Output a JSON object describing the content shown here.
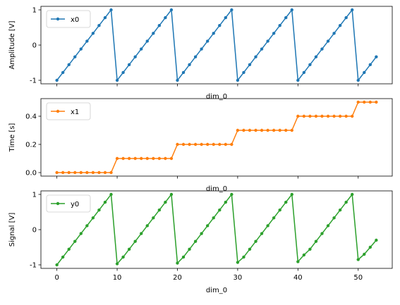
{
  "chart_data": [
    {
      "type": "line",
      "ylabel": "Amplitude [V]",
      "xlabel": "dim_0",
      "xlim": [
        -2.65,
        55.65
      ],
      "ylim": [
        -1.1,
        1.1
      ],
      "yticks": [
        -1,
        0,
        1
      ],
      "xticks": [
        0,
        10,
        20,
        30,
        40,
        50
      ],
      "show_xtick_labels": false,
      "legend_location": "upper left",
      "series": [
        {
          "name": "x0",
          "color": "#1f77b4",
          "x": [
            0,
            1,
            2,
            3,
            4,
            5,
            6,
            7,
            8,
            9,
            10,
            11,
            12,
            13,
            14,
            15,
            16,
            17,
            18,
            19,
            20,
            21,
            22,
            23,
            24,
            25,
            26,
            27,
            28,
            29,
            30,
            31,
            32,
            33,
            34,
            35,
            36,
            37,
            38,
            39,
            40,
            41,
            42,
            43,
            44,
            45,
            46,
            47,
            48,
            49,
            50,
            51,
            52,
            53
          ],
          "values": [
            -1,
            -0.778,
            -0.556,
            -0.333,
            -0.111,
            0.111,
            0.333,
            0.556,
            0.778,
            1,
            -1,
            -0.778,
            -0.556,
            -0.333,
            -0.111,
            0.111,
            0.333,
            0.556,
            0.778,
            1,
            -1,
            -0.778,
            -0.556,
            -0.333,
            -0.111,
            0.111,
            0.333,
            0.556,
            0.778,
            1,
            -1,
            -0.778,
            -0.556,
            -0.333,
            -0.111,
            0.111,
            0.333,
            0.556,
            0.778,
            1,
            -1,
            -0.778,
            -0.556,
            -0.333,
            -0.111,
            0.111,
            0.333,
            0.556,
            0.778,
            1,
            -1,
            -0.778,
            -0.556,
            -0.333
          ]
        }
      ]
    },
    {
      "type": "line",
      "ylabel": "Time [s]",
      "xlabel": "dim_0",
      "xlim": [
        -2.65,
        55.65
      ],
      "ylim": [
        -0.025,
        0.525
      ],
      "yticks": [
        0.0,
        0.2,
        0.4
      ],
      "ytick_labels": [
        "0.0",
        "0.2",
        "0.4"
      ],
      "xticks": [
        0,
        10,
        20,
        30,
        40,
        50
      ],
      "show_xtick_labels": false,
      "legend_location": "upper left",
      "series": [
        {
          "name": "x1",
          "color": "#ff7f0e",
          "x": [
            0,
            1,
            2,
            3,
            4,
            5,
            6,
            7,
            8,
            9,
            10,
            11,
            12,
            13,
            14,
            15,
            16,
            17,
            18,
            19,
            20,
            21,
            22,
            23,
            24,
            25,
            26,
            27,
            28,
            29,
            30,
            31,
            32,
            33,
            34,
            35,
            36,
            37,
            38,
            39,
            40,
            41,
            42,
            43,
            44,
            45,
            46,
            47,
            48,
            49,
            50,
            51,
            52,
            53
          ],
          "values": [
            0,
            0,
            0,
            0,
            0,
            0,
            0,
            0,
            0,
            0,
            0.1,
            0.1,
            0.1,
            0.1,
            0.1,
            0.1,
            0.1,
            0.1,
            0.1,
            0.1,
            0.2,
            0.2,
            0.2,
            0.2,
            0.2,
            0.2,
            0.2,
            0.2,
            0.2,
            0.2,
            0.3,
            0.3,
            0.3,
            0.3,
            0.3,
            0.3,
            0.3,
            0.3,
            0.3,
            0.3,
            0.4,
            0.4,
            0.4,
            0.4,
            0.4,
            0.4,
            0.4,
            0.4,
            0.4,
            0.4,
            0.5,
            0.5,
            0.5,
            0.5
          ]
        }
      ]
    },
    {
      "type": "line",
      "ylabel": "Signal [V]",
      "xlabel": "dim_0",
      "xlim": [
        -2.65,
        55.65
      ],
      "ylim": [
        -1.1,
        1.1
      ],
      "yticks": [
        -1,
        0,
        1
      ],
      "xticks": [
        0,
        10,
        20,
        30,
        40,
        50
      ],
      "show_xtick_labels": true,
      "legend_location": "upper left",
      "series": [
        {
          "name": "y0",
          "color": "#2ca02c",
          "x": [
            0,
            1,
            2,
            3,
            4,
            5,
            6,
            7,
            8,
            9,
            10,
            11,
            12,
            13,
            14,
            15,
            16,
            17,
            18,
            19,
            20,
            21,
            22,
            23,
            24,
            25,
            26,
            27,
            28,
            29,
            30,
            31,
            32,
            33,
            34,
            35,
            36,
            37,
            38,
            39,
            40,
            41,
            42,
            43,
            44,
            45,
            46,
            47,
            48,
            49,
            50,
            51,
            52,
            53
          ],
          "values": [
            -1,
            -0.778,
            -0.556,
            -0.333,
            -0.111,
            0.111,
            0.333,
            0.556,
            0.778,
            1,
            -0.97,
            -0.778,
            -0.556,
            -0.333,
            -0.111,
            0.111,
            0.333,
            0.556,
            0.778,
            1,
            -0.95,
            -0.778,
            -0.556,
            -0.333,
            -0.111,
            0.111,
            0.333,
            0.556,
            0.778,
            1,
            -0.93,
            -0.778,
            -0.556,
            -0.333,
            -0.111,
            0.111,
            0.333,
            0.556,
            0.778,
            1,
            -0.91,
            -0.72,
            -0.556,
            -0.333,
            -0.111,
            0.111,
            0.333,
            0.556,
            0.778,
            1,
            -0.85,
            -0.7,
            -0.5,
            -0.3
          ]
        }
      ]
    }
  ]
}
